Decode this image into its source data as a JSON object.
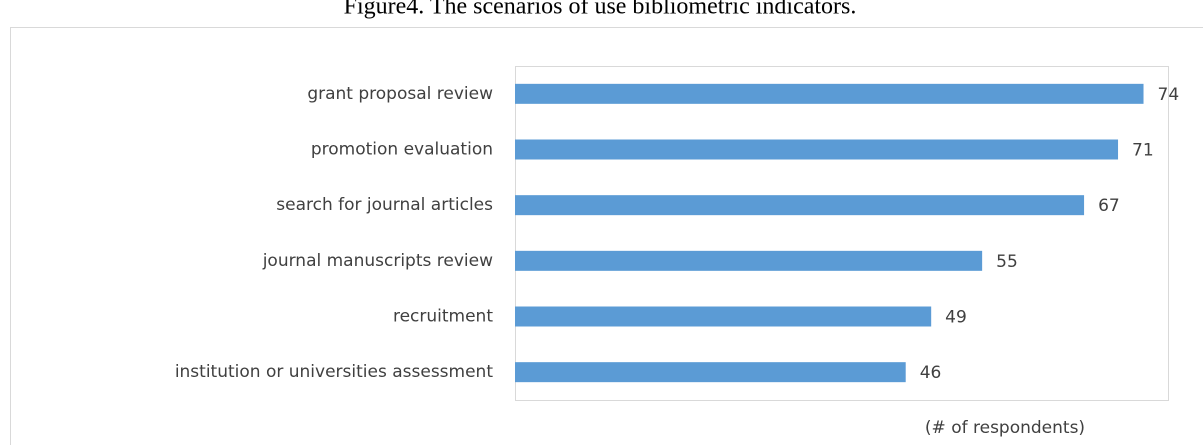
{
  "chart_data": {
    "type": "bar",
    "orientation": "horizontal",
    "title": "Figure4. The scenarios of use bibliometric indicators.",
    "x_label": "(# of respondents)",
    "categories": [
      "grant proposal review",
      "promotion evaluation",
      "search for journal articles",
      "journal manuscripts review",
      "recruitment",
      "institution or universities assessment"
    ],
    "values": [
      74,
      71,
      67,
      55,
      49,
      46
    ],
    "color": "#5b9bd5",
    "xlim": [
      0,
      77
    ],
    "grid": false
  }
}
